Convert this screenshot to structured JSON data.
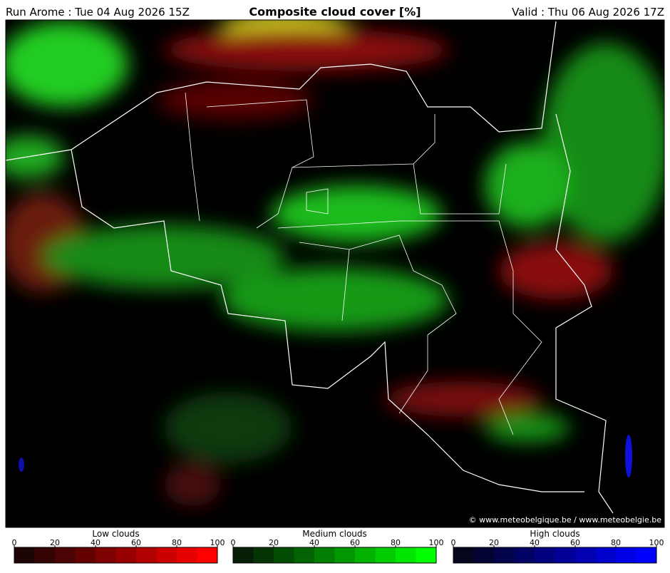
{
  "header": {
    "run": "Run Arome : Tue 04 Aug 2026 15Z",
    "title": "Composite cloud cover [%]",
    "valid": "Valid : Thu 06 Aug 2026 17Z"
  },
  "map": {
    "credit": "© www.meteobelgique.be / www.meteobelgie.be"
  },
  "legends": [
    {
      "title": "Low clouds",
      "ticks": [
        0,
        20,
        40,
        60,
        80,
        100
      ],
      "colors": [
        "#1e0505",
        "#340404",
        "#4c0303",
        "#640202",
        "#7e0202",
        "#980101",
        "#b20101",
        "#cc0000",
        "#e60000",
        "#ff0000"
      ]
    },
    {
      "title": "Medium clouds",
      "ticks": [
        0,
        20,
        40,
        60,
        80,
        100
      ],
      "colors": [
        "#051e05",
        "#043404",
        "#034c03",
        "#026402",
        "#027e02",
        "#019801",
        "#01b201",
        "#00cc00",
        "#00e600",
        "#00ff00"
      ]
    },
    {
      "title": "High clouds",
      "ticks": [
        0,
        20,
        40,
        60,
        80,
        100
      ],
      "colors": [
        "#05051e",
        "#040434",
        "#03034c",
        "#020264",
        "#02027e",
        "#010198",
        "#0101b2",
        "#0000cc",
        "#0000e6",
        "#0000ff"
      ]
    }
  ]
}
